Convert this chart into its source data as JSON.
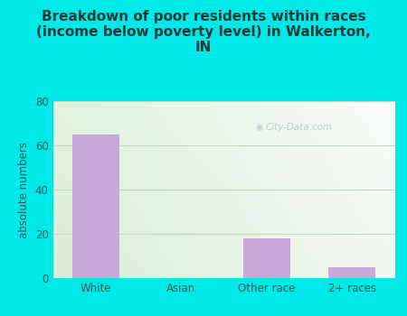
{
  "title": "Breakdown of poor residents within races\n(income below poverty level) in Walkerton,\nIN",
  "categories": [
    "White",
    "Asian",
    "Other race",
    "2+ races"
  ],
  "values": [
    65,
    0,
    18,
    5
  ],
  "bar_color": "#c8a8d8",
  "ylabel": "absolute numbers",
  "ylim": [
    0,
    80
  ],
  "yticks": [
    0,
    20,
    40,
    60,
    80
  ],
  "background_color": "#00e8e8",
  "plot_bg_color_topleft": "#d8eedc",
  "plot_bg_color_topright": "#eaf5f0",
  "plot_bg_color_bottomleft": "#ddf0e0",
  "plot_bg_color_bottomright": "#f8fff8",
  "title_color": "#1a3a3a",
  "axis_color": "#2a5a5a",
  "tick_color": "#2a5a5a",
  "grid_color": "#c0d8c4",
  "watermark_text": "City-Data.com",
  "title_fontsize": 11,
  "ylabel_fontsize": 8.5
}
